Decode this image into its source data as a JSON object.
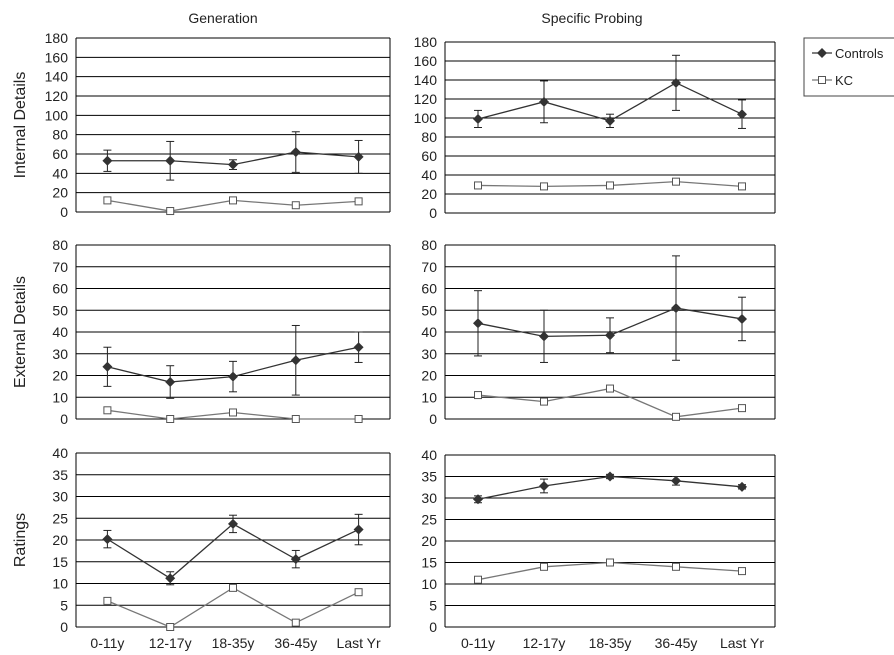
{
  "legend": {
    "placement": "top-right",
    "controls": "Controls",
    "kc": "KC"
  },
  "column_titles": [
    "Generation",
    "Specific Probing"
  ],
  "row_labels": [
    "Internal Details",
    "External Details",
    "Ratings"
  ],
  "colors": {
    "controls": "#333333",
    "kc": "#777777",
    "grid": "#000000",
    "error": "#222222"
  },
  "chart_data": [
    {
      "type": "line",
      "title": "Generation",
      "ylabel": "Internal Details",
      "categories": [
        "0-11y",
        "12-17y",
        "18-35y",
        "36-45y",
        "Last Yr"
      ],
      "ylim": [
        0,
        180
      ],
      "yticks": [
        0,
        20,
        40,
        60,
        80,
        100,
        120,
        140,
        160,
        180
      ],
      "grid": true,
      "series": [
        {
          "name": "Controls",
          "marker": "diamond",
          "values": [
            53,
            53,
            49,
            62,
            57
          ],
          "error": [
            11,
            20,
            5,
            21,
            17
          ]
        },
        {
          "name": "KC",
          "marker": "square",
          "values": [
            12,
            1,
            12,
            7,
            11
          ]
        }
      ]
    },
    {
      "type": "line",
      "title": "Specific Probing",
      "ylabel": "",
      "categories": [
        "0-11y",
        "12-17y",
        "18-35y",
        "36-45y",
        "Last Yr"
      ],
      "ylim": [
        0,
        180
      ],
      "yticks": [
        0,
        20,
        40,
        60,
        80,
        100,
        120,
        140,
        160,
        180
      ],
      "grid": true,
      "series": [
        {
          "name": "Controls",
          "marker": "diamond",
          "values": [
            99,
            117,
            97,
            137,
            104
          ],
          "error": [
            9,
            22,
            7,
            29,
            15
          ]
        },
        {
          "name": "KC",
          "marker": "square",
          "values": [
            29,
            28,
            29,
            33,
            28
          ]
        }
      ]
    },
    {
      "type": "line",
      "title": "",
      "ylabel": "External Details",
      "categories": [
        "0-11y",
        "12-17y",
        "18-35y",
        "36-45y",
        "Last Yr"
      ],
      "ylim": [
        0,
        80
      ],
      "yticks": [
        0,
        10,
        20,
        30,
        40,
        50,
        60,
        70,
        80
      ],
      "grid": true,
      "series": [
        {
          "name": "Controls",
          "marker": "diamond",
          "values": [
            24,
            17,
            19.5,
            27,
            33
          ],
          "error": [
            9,
            7.5,
            7,
            16,
            7
          ]
        },
        {
          "name": "KC",
          "marker": "square",
          "values": [
            4,
            0,
            3,
            0,
            0
          ]
        }
      ]
    },
    {
      "type": "line",
      "title": "",
      "ylabel": "",
      "categories": [
        "0-11y",
        "12-17y",
        "18-35y",
        "36-45y",
        "Last Yr"
      ],
      "ylim": [
        0,
        80
      ],
      "yticks": [
        0,
        10,
        20,
        30,
        40,
        50,
        60,
        70,
        80
      ],
      "grid": true,
      "series": [
        {
          "name": "Controls",
          "marker": "diamond",
          "values": [
            44,
            38,
            38.5,
            51,
            46
          ],
          "error": [
            15,
            12,
            8,
            24,
            10
          ]
        },
        {
          "name": "KC",
          "marker": "square",
          "values": [
            11,
            8,
            14,
            1,
            5
          ]
        }
      ]
    },
    {
      "type": "line",
      "title": "",
      "ylabel": "Ratings",
      "categories": [
        "0-11y",
        "12-17y",
        "18-35y",
        "36-45y",
        "Last Yr"
      ],
      "ylim": [
        0,
        40
      ],
      "yticks": [
        0,
        5,
        10,
        15,
        20,
        25,
        30,
        35,
        40
      ],
      "grid": true,
      "series": [
        {
          "name": "Controls",
          "marker": "diamond",
          "values": [
            20.2,
            11.2,
            23.7,
            15.6,
            22.4
          ],
          "error": [
            2,
            1.5,
            2,
            2,
            3.5
          ]
        },
        {
          "name": "KC",
          "marker": "square",
          "values": [
            6,
            0,
            9,
            1,
            8
          ]
        }
      ]
    },
    {
      "type": "line",
      "title": "",
      "ylabel": "",
      "categories": [
        "0-11y",
        "12-17y",
        "18-35y",
        "36-45y",
        "Last Yr"
      ],
      "ylim": [
        0,
        40
      ],
      "yticks": [
        0,
        5,
        10,
        15,
        20,
        25,
        30,
        35,
        40
      ],
      "grid": true,
      "series": [
        {
          "name": "Controls",
          "marker": "diamond",
          "values": [
            29.7,
            32.8,
            35,
            34,
            32.6
          ],
          "error": [
            0.8,
            1.6,
            0.5,
            1,
            0.5
          ]
        },
        {
          "name": "KC",
          "marker": "square",
          "values": [
            11,
            14,
            15,
            14,
            13
          ]
        }
      ]
    }
  ]
}
